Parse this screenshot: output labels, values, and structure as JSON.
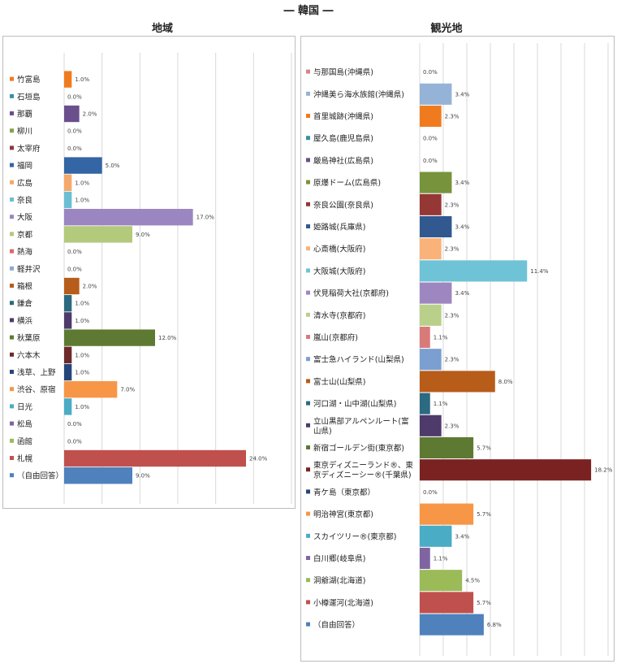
{
  "figure_title": "― 韓国 ―",
  "chart_data": [
    {
      "type": "bar",
      "orientation": "horizontal",
      "title": "地域",
      "xlim": [
        0,
        30
      ],
      "grid": true,
      "categories": [
        "竹富島",
        "石垣島",
        "那覇",
        "柳川",
        "太宰府",
        "福岡",
        "広島",
        "奈良",
        "大阪",
        "京都",
        "熱海",
        "軽井沢",
        "箱根",
        "鎌倉",
        "横浜",
        "秋葉原",
        "六本木",
        "浅草、上野",
        "渋谷、原宿",
        "日光",
        "松島",
        "函館",
        "札幌",
        "（自由回答）"
      ],
      "values": [
        1.0,
        0.0,
        2.0,
        0.0,
        0.0,
        5.0,
        1.0,
        1.0,
        17.0,
        9.0,
        0.0,
        0.0,
        2.0,
        1.0,
        1.0,
        12.0,
        1.0,
        1.0,
        7.0,
        1.0,
        0.0,
        0.0,
        24.0,
        9.0
      ],
      "value_labels": [
        "1.0%",
        "0.0%",
        "2.0%",
        "0.0%",
        "0.0%",
        "5.0%",
        "1.0%",
        "1.0%",
        "17.0%",
        "9.0%",
        "0.0%",
        "0.0%",
        "2.0%",
        "1.0%",
        "1.0%",
        "12.0%",
        "1.0%",
        "1.0%",
        "7.0%",
        "1.0%",
        "0.0%",
        "0.0%",
        "24.0%",
        "9.0%"
      ],
      "colors": [
        "#f07b1f",
        "#3a8fa3",
        "#6a4f8c",
        "#84a34a",
        "#8c3a3a",
        "#3465a4",
        "#f5a86a",
        "#6bbfd4",
        "#9b86c1",
        "#b3c97c",
        "#d96a6a",
        "#8aaad6",
        "#b85c1a",
        "#2b6a80",
        "#4e3a6b",
        "#5e7a32",
        "#6e2a2a",
        "#25467a",
        "#f79646",
        "#4bacc6",
        "#8064a2",
        "#9bbb59",
        "#c0504d",
        "#4f81bd"
      ]
    },
    {
      "type": "bar",
      "orientation": "horizontal",
      "title": "観光地",
      "xlim": [
        0,
        20
      ],
      "grid": true,
      "categories": [
        "与那国島(沖縄県)",
        "沖縄美ら海水族館(沖縄県)",
        "首里城跡(沖縄県)",
        "屋久島(鹿児島県)",
        "厳島神社(広島県)",
        "原爆ドーム(広島県)",
        "奈良公園(奈良県)",
        "姫路城(兵庫県)",
        "心斎橋(大阪府)",
        "大阪城(大阪府)",
        "伏見稲荷大社(京都府)",
        "清水寺(京都府)",
        "嵐山(京都府)",
        "富士急ハイランド(山梨県)",
        "富士山(山梨県)",
        "河口湖・山中湖(山梨県)",
        "立山黒部アルペンルート(富山県)",
        "新宿ゴールデン街(東京都)",
        "東京ディズニーランド®、東京ディズニーシー®(千葉県)",
        "青ケ島（東京都）",
        "明治神宮(東京都)",
        "スカイツリー®(東京都)",
        "白川郷(岐阜県)",
        "洞爺湖(北海道)",
        "小樽運河(北海道)",
        "（自由回答）"
      ],
      "values": [
        0.0,
        3.4,
        2.3,
        0.0,
        0.0,
        3.4,
        2.3,
        3.4,
        2.3,
        11.4,
        3.4,
        2.3,
        1.1,
        2.3,
        8.0,
        1.1,
        2.3,
        5.7,
        18.2,
        0.0,
        5.7,
        3.4,
        1.1,
        4.5,
        5.7,
        6.8
      ],
      "value_labels": [
        "0.0%",
        "3.4%",
        "2.3%",
        "0.0%",
        "0.0%",
        "3.4%",
        "2.3%",
        "3.4%",
        "2.3%",
        "11.4%",
        "3.4%",
        "2.3%",
        "1.1%",
        "2.3%",
        "8.0%",
        "1.1%",
        "2.3%",
        "5.7%",
        "18.2%",
        "0.0%",
        "5.7%",
        "3.4%",
        "1.1%",
        "4.5%",
        "5.7%",
        "6.8%"
      ],
      "colors": [
        "#d98585",
        "#95b3d7",
        "#f07b1f",
        "#3a8fa3",
        "#6a4f8c",
        "#77933c",
        "#953735",
        "#31598f",
        "#f9b27a",
        "#6fc3d6",
        "#9e86c1",
        "#b9d08a",
        "#d97a7a",
        "#7b9fd0",
        "#b85c1a",
        "#2b6a80",
        "#4e3a6b",
        "#5e7a32",
        "#7a2222",
        "#25467a",
        "#f79646",
        "#4bacc6",
        "#8064a2",
        "#9bbb59",
        "#c0504d",
        "#4f81bd"
      ]
    }
  ]
}
